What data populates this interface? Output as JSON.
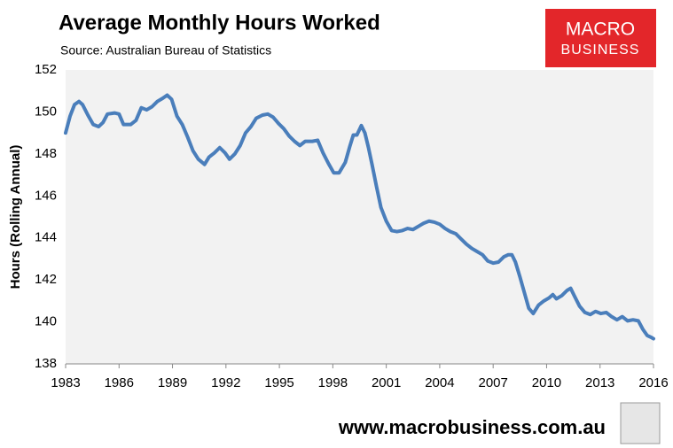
{
  "chart_data": {
    "type": "line",
    "title": "Average Monthly Hours Worked",
    "subtitle": "Source: Australian Bureau of Statistics",
    "y_label": "Hours (Rolling Annual)",
    "logo": [
      "MACRO",
      "BUSINESS"
    ],
    "footer": "www.macrobusiness.com.au",
    "grid": false,
    "xlim": [
      1983,
      2016
    ],
    "xticks": [
      1983,
      1986,
      1989,
      1992,
      1995,
      1998,
      2001,
      2004,
      2007,
      2010,
      2013,
      2016
    ],
    "ylim": [
      138,
      152
    ],
    "yticks": [
      138,
      140,
      142,
      144,
      146,
      148,
      150,
      152
    ],
    "series": [
      {
        "color": "#4a7ebb",
        "x": [
          1983.0,
          1983.25,
          1983.5,
          1983.75,
          1983.95,
          1984.25,
          1984.55,
          1984.85,
          1985.1,
          1985.35,
          1985.75,
          1986.0,
          1986.25,
          1986.65,
          1986.95,
          1987.25,
          1987.55,
          1987.85,
          1988.15,
          1988.45,
          1988.7,
          1988.95,
          1989.25,
          1989.55,
          1989.85,
          1990.15,
          1990.45,
          1990.8,
          1991.05,
          1991.35,
          1991.65,
          1991.95,
          1992.2,
          1992.5,
          1992.8,
          1993.1,
          1993.4,
          1993.7,
          1994.05,
          1994.35,
          1994.65,
          1994.95,
          1995.25,
          1995.55,
          1995.85,
          1996.15,
          1996.45,
          1996.85,
          1997.15,
          1997.45,
          1997.75,
          1998.05,
          1998.35,
          1998.7,
          1998.95,
          1999.15,
          1999.35,
          1999.6,
          1999.8,
          2000.0,
          2000.2,
          2000.45,
          2000.7,
          2001.0,
          2001.3,
          2001.6,
          2001.9,
          2002.2,
          2002.5,
          2002.8,
          2003.1,
          2003.4,
          2003.7,
          2004.0,
          2004.3,
          2004.6,
          2004.9,
          2005.2,
          2005.5,
          2005.8,
          2006.1,
          2006.4,
          2006.7,
          2007.0,
          2007.3,
          2007.6,
          2007.85,
          2008.05,
          2008.25,
          2008.5,
          2008.75,
          2009.0,
          2009.25,
          2009.55,
          2009.85,
          2010.15,
          2010.35,
          2010.55,
          2010.85,
          2011.15,
          2011.35,
          2011.55,
          2011.85,
          2012.15,
          2012.45,
          2012.75,
          2013.05,
          2013.35,
          2013.65,
          2013.95,
          2014.25,
          2014.55,
          2014.85,
          2015.15,
          2015.4,
          2015.65,
          2015.9,
          2016.0
        ],
        "values": [
          149.0,
          149.8,
          150.35,
          150.5,
          150.35,
          149.85,
          149.4,
          149.3,
          149.5,
          149.9,
          149.95,
          149.9,
          149.4,
          149.4,
          149.6,
          150.2,
          150.1,
          150.25,
          150.5,
          150.65,
          150.8,
          150.6,
          149.8,
          149.4,
          148.8,
          148.15,
          147.75,
          147.5,
          147.85,
          148.05,
          148.3,
          148.05,
          147.75,
          148.0,
          148.4,
          149.0,
          149.3,
          149.7,
          149.85,
          149.9,
          149.75,
          149.45,
          149.2,
          148.85,
          148.6,
          148.4,
          148.6,
          148.6,
          148.65,
          148.05,
          147.55,
          147.1,
          147.1,
          147.6,
          148.35,
          148.9,
          148.9,
          149.35,
          149.0,
          148.3,
          147.5,
          146.45,
          145.45,
          144.8,
          144.35,
          144.3,
          144.35,
          144.45,
          144.4,
          144.55,
          144.7,
          144.8,
          144.75,
          144.65,
          144.45,
          144.3,
          144.2,
          143.95,
          143.7,
          143.5,
          143.35,
          143.2,
          142.9,
          142.8,
          142.85,
          143.1,
          143.2,
          143.2,
          142.85,
          142.15,
          141.4,
          140.65,
          140.4,
          140.8,
          141.0,
          141.15,
          141.3,
          141.1,
          141.25,
          141.5,
          141.6,
          141.25,
          140.75,
          140.45,
          140.35,
          140.5,
          140.4,
          140.45,
          140.25,
          140.1,
          140.25,
          140.05,
          140.1,
          140.05,
          139.65,
          139.35,
          139.25,
          139.2
        ]
      }
    ]
  }
}
